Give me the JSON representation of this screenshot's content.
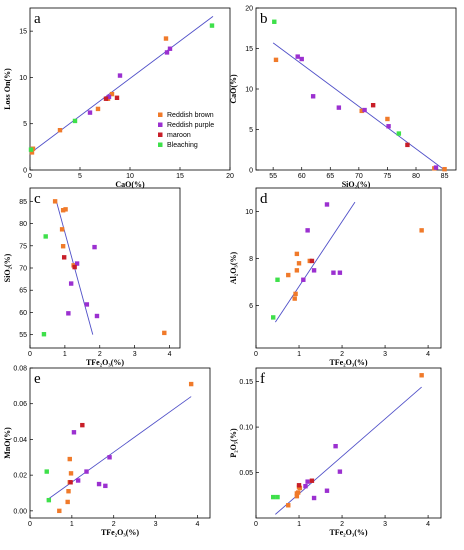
{
  "colors": {
    "Reddish brown": "#f07a2a",
    "Reddish purple": "#9b30d0",
    "maroon": "#c81e28",
    "Bleaching": "#3ee04a",
    "trend": "#5050c8"
  },
  "legend": [
    "Reddish brown",
    "Reddish purple",
    "maroon",
    "Bleaching"
  ],
  "chart_data": [
    {
      "type": "scatter",
      "panel": "a",
      "xlabel": "CaO(%)",
      "ylabel": "Loss On(%)",
      "xlim": [
        0,
        20
      ],
      "ylim": [
        0,
        17.5
      ],
      "xticks": [
        0,
        5,
        10,
        15,
        20
      ],
      "yticks": [
        0,
        5,
        10,
        15
      ],
      "trend": [
        [
          0,
          1.8
        ],
        [
          18.3,
          16.6
        ]
      ],
      "legend": "center-right",
      "points": [
        {
          "s": "Reddish brown",
          "x": 0.2,
          "y": 1.9
        },
        {
          "s": "Reddish brown",
          "x": 0.3,
          "y": 2.3
        },
        {
          "s": "Reddish brown",
          "x": 3.0,
          "y": 4.3
        },
        {
          "s": "Reddish brown",
          "x": 6.8,
          "y": 6.6
        },
        {
          "s": "Reddish brown",
          "x": 7.8,
          "y": 7.7
        },
        {
          "s": "Reddish brown",
          "x": 8.2,
          "y": 8.2
        },
        {
          "s": "Reddish brown",
          "x": 13.6,
          "y": 14.2
        },
        {
          "s": "Reddish purple",
          "x": 6.0,
          "y": 6.2
        },
        {
          "s": "Reddish purple",
          "x": 7.9,
          "y": 7.9
        },
        {
          "s": "Reddish purple",
          "x": 9.0,
          "y": 10.2
        },
        {
          "s": "Reddish purple",
          "x": 13.7,
          "y": 12.7
        },
        {
          "s": "Reddish purple",
          "x": 14.0,
          "y": 13.1
        },
        {
          "s": "maroon",
          "x": 7.6,
          "y": 7.7
        },
        {
          "s": "maroon",
          "x": 8.7,
          "y": 7.8
        },
        {
          "s": "Bleaching",
          "x": 0.1,
          "y": 2.2
        },
        {
          "s": "Bleaching",
          "x": 4.5,
          "y": 5.3
        },
        {
          "s": "Bleaching",
          "x": 18.2,
          "y": 15.6
        }
      ]
    },
    {
      "type": "scatter",
      "panel": "b",
      "xlabel": "SiO₂(%)",
      "ylabel": "CaO(%)",
      "xlim": [
        52,
        87
      ],
      "ylim": [
        0,
        20
      ],
      "xticks": [
        55,
        60,
        65,
        70,
        75,
        80,
        85
      ],
      "yticks": [
        0,
        5,
        10,
        15,
        20
      ],
      "trend": [
        [
          55,
          15.7
        ],
        [
          85,
          0
        ]
      ],
      "points": [
        {
          "s": "Reddish brown",
          "x": 55.5,
          "y": 13.6
        },
        {
          "s": "Reddish brown",
          "x": 70.5,
          "y": 7.3
        },
        {
          "s": "Reddish brown",
          "x": 75.0,
          "y": 6.3
        },
        {
          "s": "Reddish brown",
          "x": 83.2,
          "y": 0.2
        },
        {
          "s": "Reddish brown",
          "x": 85.0,
          "y": 0.1
        },
        {
          "s": "Reddish purple",
          "x": 59.3,
          "y": 14.0
        },
        {
          "s": "Reddish purple",
          "x": 60.0,
          "y": 13.7
        },
        {
          "s": "Reddish purple",
          "x": 62.0,
          "y": 9.1
        },
        {
          "s": "Reddish purple",
          "x": 66.5,
          "y": 7.7
        },
        {
          "s": "Reddish purple",
          "x": 71.0,
          "y": 7.4
        },
        {
          "s": "Reddish purple",
          "x": 75.2,
          "y": 5.4
        },
        {
          "s": "Reddish purple",
          "x": 83.5,
          "y": 0.3
        },
        {
          "s": "maroon",
          "x": 72.5,
          "y": 8.0
        },
        {
          "s": "maroon",
          "x": 78.5,
          "y": 3.1
        },
        {
          "s": "Bleaching",
          "x": 55.2,
          "y": 18.3
        },
        {
          "s": "Bleaching",
          "x": 77.0,
          "y": 4.5
        }
      ]
    },
    {
      "type": "scatter",
      "panel": "c",
      "xlabel": "TFe₂O₃(%)",
      "ylabel": "SiO₂(%)",
      "xlim": [
        0,
        4.3
      ],
      "ylim": [
        52,
        88
      ],
      "xticks": [
        0,
        1,
        2,
        3,
        4
      ],
      "yticks": [
        55,
        60,
        65,
        70,
        75,
        80,
        85
      ],
      "trend": [
        [
          0.75,
          85.2
        ],
        [
          1.8,
          55
        ]
      ],
      "points": [
        {
          "s": "Reddish brown",
          "x": 0.72,
          "y": 85.0
        },
        {
          "s": "Reddish brown",
          "x": 0.95,
          "y": 83.0
        },
        {
          "s": "Reddish brown",
          "x": 1.02,
          "y": 83.2
        },
        {
          "s": "Reddish brown",
          "x": 0.92,
          "y": 78.7
        },
        {
          "s": "Reddish brown",
          "x": 0.95,
          "y": 74.9
        },
        {
          "s": "Reddish brown",
          "x": 1.25,
          "y": 70.6
        },
        {
          "s": "Reddish brown",
          "x": 3.85,
          "y": 55.4
        },
        {
          "s": "Reddish purple",
          "x": 1.85,
          "y": 74.7
        },
        {
          "s": "Reddish purple",
          "x": 1.35,
          "y": 71.0
        },
        {
          "s": "Reddish purple",
          "x": 1.18,
          "y": 66.5
        },
        {
          "s": "Reddish purple",
          "x": 1.63,
          "y": 61.8
        },
        {
          "s": "Reddish purple",
          "x": 1.1,
          "y": 59.8
        },
        {
          "s": "Reddish purple",
          "x": 1.92,
          "y": 59.2
        },
        {
          "s": "maroon",
          "x": 0.98,
          "y": 72.4
        },
        {
          "s": "maroon",
          "x": 1.28,
          "y": 70.2
        },
        {
          "s": "Bleaching",
          "x": 0.45,
          "y": 77.1
        },
        {
          "s": "Bleaching",
          "x": 0.4,
          "y": 55.1
        }
      ]
    },
    {
      "type": "scatter",
      "panel": "d",
      "xlabel": "TFe₂O₃(%)",
      "ylabel": "Al₂O₃(%)",
      "xlim": [
        0,
        4.3
      ],
      "ylim": [
        4.2,
        11
      ],
      "xticks": [
        0,
        1,
        2,
        3,
        4
      ],
      "yticks": [
        6,
        8,
        10
      ],
      "trend": [
        [
          0.45,
          5.3
        ],
        [
          2.3,
          10.4
        ]
      ],
      "points": [
        {
          "s": "Reddish brown",
          "x": 0.75,
          "y": 7.3
        },
        {
          "s": "Reddish brown",
          "x": 0.9,
          "y": 6.3
        },
        {
          "s": "Reddish brown",
          "x": 0.92,
          "y": 6.5
        },
        {
          "s": "Reddish brown",
          "x": 0.95,
          "y": 7.5
        },
        {
          "s": "Reddish brown",
          "x": 0.95,
          "y": 8.2
        },
        {
          "s": "Reddish brown",
          "x": 1.0,
          "y": 7.8
        },
        {
          "s": "Reddish brown",
          "x": 1.25,
          "y": 7.9
        },
        {
          "s": "Reddish brown",
          "x": 3.85,
          "y": 9.2
        },
        {
          "s": "Reddish purple",
          "x": 1.1,
          "y": 7.1
        },
        {
          "s": "Reddish purple",
          "x": 1.2,
          "y": 9.2
        },
        {
          "s": "Reddish purple",
          "x": 1.35,
          "y": 7.5
        },
        {
          "s": "Reddish purple",
          "x": 1.65,
          "y": 10.3
        },
        {
          "s": "Reddish purple",
          "x": 1.8,
          "y": 7.4
        },
        {
          "s": "Reddish purple",
          "x": 1.95,
          "y": 7.4
        },
        {
          "s": "maroon",
          "x": 1.3,
          "y": 7.9
        },
        {
          "s": "Bleaching",
          "x": 0.4,
          "y": 5.5
        },
        {
          "s": "Bleaching",
          "x": 0.5,
          "y": 7.1
        }
      ]
    },
    {
      "type": "scatter",
      "panel": "e",
      "xlabel": "TFe₂O₃(%)",
      "ylabel": "MnO(%)",
      "xlim": [
        0,
        4.3
      ],
      "ylim": [
        -0.004,
        0.08
      ],
      "xticks": [
        0,
        1,
        2,
        3,
        4
      ],
      "yticks": [
        0.0,
        0.02,
        0.04,
        0.06,
        0.08
      ],
      "yfmt": 2,
      "trend": [
        [
          0.4,
          0.006
        ],
        [
          3.85,
          0.064
        ]
      ],
      "points": [
        {
          "s": "Reddish brown",
          "x": 0.7,
          "y": 0.0
        },
        {
          "s": "Reddish brown",
          "x": 0.9,
          "y": 0.005
        },
        {
          "s": "Reddish brown",
          "x": 0.92,
          "y": 0.011
        },
        {
          "s": "Reddish brown",
          "x": 0.95,
          "y": 0.016
        },
        {
          "s": "Reddish brown",
          "x": 0.98,
          "y": 0.021
        },
        {
          "s": "Reddish brown",
          "x": 0.95,
          "y": 0.029
        },
        {
          "s": "Reddish brown",
          "x": 3.85,
          "y": 0.071
        },
        {
          "s": "Reddish purple",
          "x": 1.05,
          "y": 0.044
        },
        {
          "s": "Reddish purple",
          "x": 1.15,
          "y": 0.017
        },
        {
          "s": "Reddish purple",
          "x": 1.35,
          "y": 0.022
        },
        {
          "s": "Reddish purple",
          "x": 1.65,
          "y": 0.015
        },
        {
          "s": "Reddish purple",
          "x": 1.8,
          "y": 0.014
        },
        {
          "s": "Reddish purple",
          "x": 1.9,
          "y": 0.03
        },
        {
          "s": "maroon",
          "x": 0.97,
          "y": 0.016
        },
        {
          "s": "maroon",
          "x": 1.25,
          "y": 0.048
        },
        {
          "s": "Bleaching",
          "x": 0.4,
          "y": 0.022
        },
        {
          "s": "Bleaching",
          "x": 0.45,
          "y": 0.006
        }
      ]
    },
    {
      "type": "scatter",
      "panel": "f",
      "xlabel": "TFe₂O₃(%)",
      "ylabel": "P₂O₅(%)",
      "xlim": [
        0,
        4.3
      ],
      "ylim": [
        0,
        0.165
      ],
      "xticks": [
        0,
        1,
        2,
        3,
        4
      ],
      "yticks": [
        0.05,
        0.1,
        0.15
      ],
      "yfmt": 2,
      "trend": [
        [
          0.45,
          0.004
        ],
        [
          3.85,
          0.144
        ]
      ],
      "points": [
        {
          "s": "Reddish brown",
          "x": 0.95,
          "y": 0.024
        },
        {
          "s": "Reddish brown",
          "x": 0.95,
          "y": 0.027
        },
        {
          "s": "Reddish brown",
          "x": 0.98,
          "y": 0.028
        },
        {
          "s": "Reddish brown",
          "x": 1.0,
          "y": 0.034
        },
        {
          "s": "Reddish brown",
          "x": 1.02,
          "y": 0.033
        },
        {
          "s": "Reddish brown",
          "x": 3.85,
          "y": 0.157
        },
        {
          "s": "Reddish brown",
          "x": 0.75,
          "y": 0.014
        },
        {
          "s": "Reddish purple",
          "x": 1.15,
          "y": 0.035
        },
        {
          "s": "Reddish purple",
          "x": 1.2,
          "y": 0.04
        },
        {
          "s": "Reddish purple",
          "x": 1.35,
          "y": 0.022
        },
        {
          "s": "Reddish purple",
          "x": 1.65,
          "y": 0.03
        },
        {
          "s": "Reddish purple",
          "x": 1.85,
          "y": 0.079
        },
        {
          "s": "Reddish purple",
          "x": 1.95,
          "y": 0.051
        },
        {
          "s": "maroon",
          "x": 1.0,
          "y": 0.036
        },
        {
          "s": "maroon",
          "x": 1.3,
          "y": 0.041
        },
        {
          "s": "Bleaching",
          "x": 0.4,
          "y": 0.023
        },
        {
          "s": "Bleaching",
          "x": 0.5,
          "y": 0.023
        }
      ]
    }
  ]
}
